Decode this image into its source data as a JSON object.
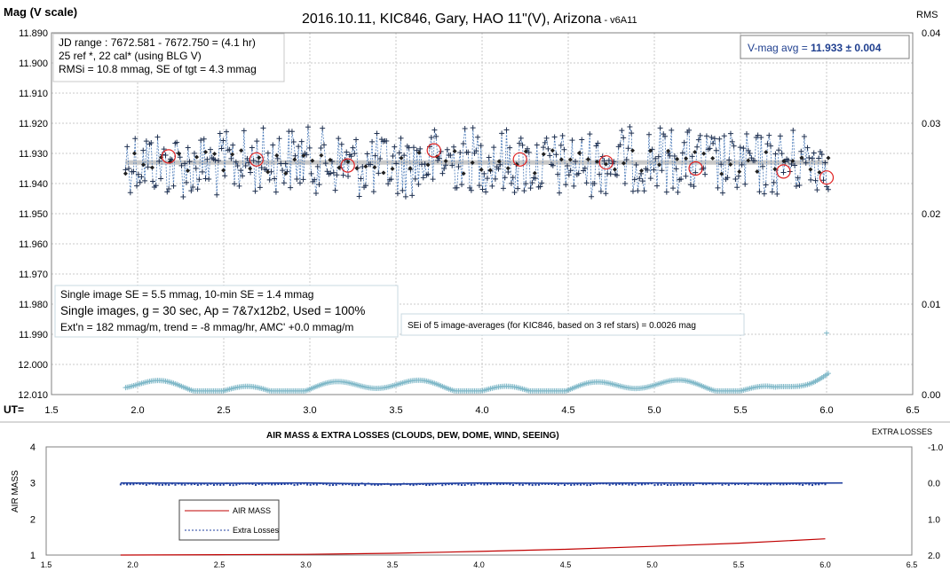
{
  "chart_data": [
    {
      "type": "scatter",
      "title": "2016.10.11, KIC846, Gary, HAO 11\"(V), Arizona",
      "title_suffix": " - v6A11",
      "ylabel": "Mag (V scale)",
      "y2label": "RMS",
      "xlabel": "UT=",
      "xlim": [
        1.5,
        6.5
      ],
      "ylim": [
        11.89,
        12.01
      ],
      "y_reversed": true,
      "y2lim": [
        0.0,
        0.04
      ],
      "grid": true,
      "x_ticks": [
        "1.5",
        "2.0",
        "2.5",
        "3.0",
        "3.5",
        "4.0",
        "4.5",
        "5.0",
        "5.5",
        "6.0",
        "6.5"
      ],
      "y_ticks": [
        "11.890",
        "11.900",
        "11.910",
        "11.920",
        "11.930",
        "11.940",
        "11.950",
        "11.960",
        "11.970",
        "11.980",
        "11.990",
        "12.000",
        "12.010"
      ],
      "y2_ticks": [
        "0.04",
        "0.03",
        "0.02",
        "0.01",
        "0.00"
      ],
      "info_box_top": [
        "JD range : 7672.581 - 7672.750 = (4.1 hr)",
        "25 ref *, 22 cal* (using BLG V)",
        "RMSi = 10.8 mmag, SE of tgt = 4.3 mmag"
      ],
      "vmag_label": "V-mag avg = ",
      "vmag_value": "11.933",
      "vmag_err": "± 0.004",
      "info_box_bottom": [
        "Single image SE = 5.5 mmag, 10-min SE = 1.4 mmag",
        "Single images, g = 30 sec, Ap = 7&7x12b2, Used = 100%",
        "Ext'n = 182 mmag/m, trend = -8 mmag/hr, AMC' +0.0 mmag/m"
      ],
      "sei_note": "SEi of 5 image-averages (for KIC846, based on 3 ref stars) = 0.0026 mag",
      "average_line": 11.933,
      "time_range": [
        1.93,
        6.01
      ],
      "five_image_averages": [
        {
          "x": 2.18,
          "y": 11.931
        },
        {
          "x": 2.69,
          "y": 11.932
        },
        {
          "x": 3.22,
          "y": 11.934
        },
        {
          "x": 3.72,
          "y": 11.929
        },
        {
          "x": 4.22,
          "y": 11.932
        },
        {
          "x": 4.72,
          "y": 11.933
        },
        {
          "x": 5.24,
          "y": 11.935
        },
        {
          "x": 5.75,
          "y": 11.936
        },
        {
          "x": 6.0,
          "y": 11.938
        }
      ]
    },
    {
      "type": "line",
      "title": "AIR MASS & EXTRA LOSSES (CLOUDS, DEW, DOME, WIND, SEEING)",
      "ylabel": "AIR MASS",
      "y2label": "EXTRA LOSSES",
      "xlim": [
        1.5,
        6.5
      ],
      "ylim": [
        1,
        4
      ],
      "y2lim": [
        -1.0,
        2.0
      ],
      "x_ticks": [
        "1.5",
        "2.0",
        "2.5",
        "3.0",
        "3.5",
        "4.0",
        "4.5",
        "5.0",
        "5.5",
        "6.0",
        "6.5"
      ],
      "y_ticks": [
        "4",
        "3",
        "2",
        "1"
      ],
      "y2_ticks": [
        "-1.0",
        "0.0",
        "1.0",
        "2.0"
      ],
      "legend": [
        "AIR MASS",
        "Extra Losses"
      ],
      "air_mass": {
        "x": [
          1.93,
          2.5,
          3.0,
          3.5,
          4.0,
          4.5,
          5.0,
          5.5,
          6.0
        ],
        "y": [
          1.0,
          1.01,
          1.02,
          1.05,
          1.1,
          1.16,
          1.24,
          1.33,
          1.45
        ]
      },
      "extra_losses": {
        "x": [
          1.93,
          2.5,
          3.0,
          3.5,
          4.0,
          4.5,
          5.0,
          5.5,
          6.1
        ],
        "y": [
          0.0,
          0.01,
          0.0,
          0.03,
          0.0,
          0.01,
          0.0,
          0.01,
          0.0
        ]
      }
    }
  ]
}
